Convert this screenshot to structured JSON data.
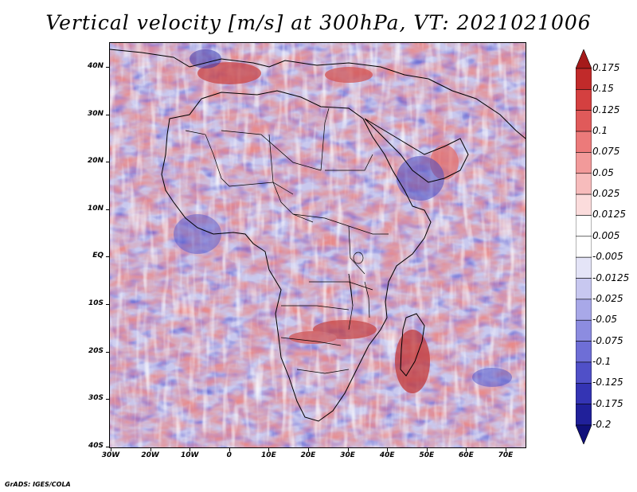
{
  "title": "Vertical velocity [m/s] at 300hPa, VT: 2021021006",
  "credit": "GrADS: IGES/COLA",
  "lat_labels": [
    "40N",
    "30N",
    "20N",
    "10N",
    "EQ",
    "10S",
    "20S",
    "30S",
    "40S"
  ],
  "lon_labels": [
    "30W",
    "20W",
    "10W",
    "0",
    "10E",
    "20E",
    "30E",
    "40E",
    "50E",
    "60E",
    "70E"
  ],
  "colorbar": {
    "labels": [
      "0.175",
      "0.15",
      "0.125",
      "0.1",
      "0.075",
      "0.05",
      "0.025",
      "0.0125",
      "0.005",
      "-0.005",
      "-0.0125",
      "-0.025",
      "-0.05",
      "-0.075",
      "-0.1",
      "-0.125",
      "-0.175",
      "-0.2"
    ],
    "colors": [
      "#a51a1a",
      "#c12a2a",
      "#d44040",
      "#e05a5a",
      "#ec7a7a",
      "#f29a9a",
      "#f7bcbc",
      "#fbdcdc",
      "#ffffff",
      "#ffffff",
      "#e4e4f7",
      "#c8c8f0",
      "#a8a8e8",
      "#8c8ce0",
      "#6e6ed6",
      "#5050c8",
      "#3434b4",
      "#20209a",
      "#10107a"
    ]
  },
  "palette": {
    "sea_background": "#d9dcf3",
    "upward_motion": "#e88080",
    "downward_motion": "#7a7ad8",
    "boundaries": "#000000"
  }
}
